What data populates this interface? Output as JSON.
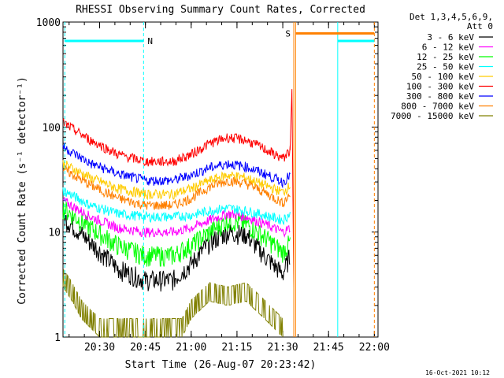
{
  "chart_data": {
    "type": "line",
    "title": "RHESSI Observing Summary Count Rates, Corrected",
    "xlabel": "Start Time (26-Aug-07 20:23:42)",
    "ylabel": "Corrected Count Rate (s⁻¹ detector⁻¹)",
    "yscale": "log",
    "ylim": [
      1,
      1000
    ],
    "xlim_minutes": [
      20.3,
      22.02
    ],
    "x_tick_labels": [
      "20:30",
      "20:45",
      "21:00",
      "21:15",
      "21:30",
      "21:45",
      "22:00"
    ],
    "x_tick_values": [
      20.5,
      20.75,
      21.0,
      21.25,
      21.5,
      21.75,
      22.0
    ],
    "y_tick_labels": [
      "1",
      "10",
      "100",
      "1000"
    ],
    "y_tick_values": [
      1,
      10,
      100,
      1000
    ],
    "legend_header": [
      "Det 1,3,4,5,6,9,",
      "Att 0"
    ],
    "legend_position": "right",
    "series": [
      {
        "name": "3 - 6 keV",
        "color": "#000000",
        "x": [
          20.3,
          20.45,
          20.6,
          20.75,
          20.9,
          21.0,
          21.1,
          21.2,
          21.3,
          21.4,
          21.5,
          21.54
        ],
        "values": [
          14,
          8,
          4.5,
          3.5,
          3.5,
          5,
          8,
          10,
          9.5,
          6,
          4,
          6
        ]
      },
      {
        "name": "6 - 12 keV",
        "color": "#ff00ff",
        "x": [
          20.3,
          20.45,
          20.6,
          20.75,
          20.9,
          21.0,
          21.1,
          21.2,
          21.3,
          21.4,
          21.5,
          21.54
        ],
        "values": [
          20,
          14,
          11,
          10,
          10,
          11,
          13,
          15,
          14,
          12,
          10,
          11
        ]
      },
      {
        "name": "12 - 25 keV",
        "color": "#00ff00",
        "x": [
          20.3,
          20.45,
          20.6,
          20.75,
          20.9,
          21.0,
          21.1,
          21.2,
          21.3,
          21.4,
          21.5,
          21.54
        ],
        "values": [
          17,
          11,
          7.5,
          6,
          6,
          7.5,
          10,
          13,
          12,
          9,
          6.5,
          8
        ]
      },
      {
        "name": "25 - 50 keV",
        "color": "#00ffff",
        "x": [
          20.3,
          20.45,
          20.6,
          20.75,
          20.9,
          21.0,
          21.1,
          21.2,
          21.3,
          21.4,
          21.5,
          21.54
        ],
        "values": [
          25,
          18,
          15,
          14,
          14,
          14.5,
          16,
          17,
          16,
          14.5,
          13,
          15
        ]
      },
      {
        "name": "50 - 100 keV",
        "color": "#ffcc00",
        "x": [
          20.3,
          20.45,
          20.6,
          20.75,
          20.9,
          21.0,
          21.1,
          21.2,
          21.3,
          21.4,
          21.5,
          21.54
        ],
        "values": [
          45,
          33,
          26,
          23,
          23,
          26,
          31,
          35,
          33,
          28,
          24,
          28
        ]
      },
      {
        "name": "100 - 300 keV",
        "color": "#ff0000",
        "x": [
          20.3,
          20.45,
          20.6,
          20.75,
          20.9,
          21.0,
          21.1,
          21.2,
          21.3,
          21.4,
          21.5,
          21.54
        ],
        "values": [
          110,
          75,
          55,
          47,
          47,
          55,
          70,
          80,
          75,
          62,
          50,
          60
        ]
      },
      {
        "name": "300 - 800 keV",
        "color": "#0000ff",
        "x": [
          20.3,
          20.45,
          20.6,
          20.75,
          20.9,
          21.0,
          21.1,
          21.2,
          21.3,
          21.4,
          21.5,
          21.54
        ],
        "values": [
          65,
          45,
          36,
          31,
          31,
          35,
          41,
          45,
          42,
          36,
          30,
          35
        ]
      },
      {
        "name": "800 - 7000 keV",
        "color": "#ff8000",
        "x": [
          20.3,
          20.45,
          20.6,
          20.75,
          20.9,
          21.0,
          21.1,
          21.2,
          21.3,
          21.4,
          21.5,
          21.54
        ],
        "values": [
          40,
          28,
          21,
          18,
          18,
          21,
          27,
          31,
          29,
          24,
          19,
          23
        ]
      },
      {
        "name": "7000 - 15000 keV",
        "color": "#808000",
        "x": [
          20.3,
          20.35,
          20.4,
          20.5,
          20.6,
          20.8,
          20.95,
          21.0,
          21.1,
          21.2,
          21.3,
          21.4,
          21.5
        ],
        "values": [
          3,
          2.2,
          1.5,
          1,
          1,
          1,
          1,
          1.5,
          2.2,
          2,
          2.2,
          1.5,
          1
        ]
      }
    ],
    "annotations": [
      {
        "text": "N",
        "color": "#00ffff",
        "x": 20.74
      },
      {
        "text": "S",
        "color": "#ff8000",
        "x": 21.57
      }
    ],
    "night_bar": {
      "color": "#00ffff",
      "y": 660,
      "ranges": [
        [
          20.31,
          20.74
        ],
        [
          21.8,
          22.0
        ]
      ]
    },
    "saa_bar": {
      "color": "#ff8000",
      "y": 780,
      "ranges": [
        [
          21.57,
          22.0
        ]
      ]
    },
    "vertical_markers": [
      {
        "x": 20.31,
        "color": "#00ffff",
        "style": "dashed"
      },
      {
        "x": 20.74,
        "color": "#00ffff",
        "style": "dashed"
      },
      {
        "x": 21.56,
        "color": "#ff8000",
        "style": "solid"
      },
      {
        "x": 21.57,
        "color": "#ff8000",
        "style": "solid"
      },
      {
        "x": 21.8,
        "color": "#00ffff",
        "style": "solid"
      },
      {
        "x": 22.0,
        "color": "#ff8000",
        "style": "dashed"
      }
    ],
    "footer": "16-Oct-2021 10:12"
  }
}
